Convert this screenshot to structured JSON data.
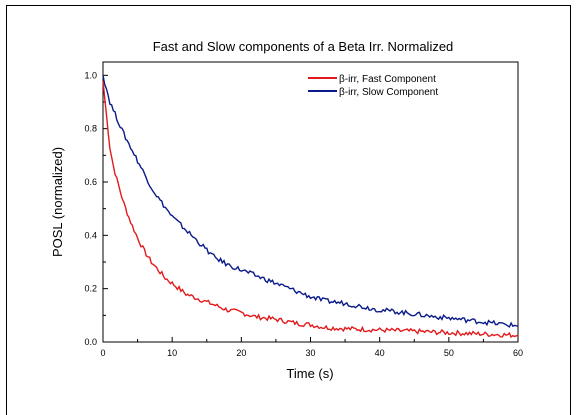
{
  "chart_data": {
    "type": "line",
    "title": "Fast and Slow components of a Beta Irr. Normalized",
    "xlabel": "Time (s)",
    "ylabel": "POSL (normalized)",
    "xlim": [
      0,
      60
    ],
    "ylim": [
      0,
      1.05
    ],
    "xticks": [
      0,
      10,
      20,
      30,
      40,
      50,
      60
    ],
    "yticks": [
      0.0,
      0.2,
      0.4,
      0.6,
      0.8,
      1.0
    ],
    "xtick_labels": [
      "0",
      "10",
      "20",
      "30",
      "40",
      "50",
      "60"
    ],
    "ytick_labels": [
      "0.0",
      "0.2",
      "0.4",
      "0.6",
      "0.8",
      "1.0"
    ],
    "grid": false,
    "legend": "top-right",
    "series": [
      {
        "name": "β-irr, Fast Component",
        "color": "#e31a1c",
        "x": [
          0,
          0.5,
          1,
          1.5,
          2,
          3,
          4,
          5,
          6,
          7,
          8,
          9,
          10,
          12,
          14,
          16,
          18,
          20,
          22,
          25,
          28,
          30,
          32,
          35,
          40,
          45,
          50,
          55,
          60
        ],
        "y": [
          0.98,
          0.85,
          0.73,
          0.66,
          0.61,
          0.52,
          0.45,
          0.39,
          0.34,
          0.3,
          0.27,
          0.24,
          0.22,
          0.18,
          0.16,
          0.14,
          0.12,
          0.11,
          0.095,
          0.085,
          0.07,
          0.065,
          0.055,
          0.05,
          0.045,
          0.04,
          0.035,
          0.03,
          0.025
        ]
      },
      {
        "name": "β-irr, Slow Component",
        "color": "#0a1a8a",
        "x": [
          0,
          0.5,
          1,
          2,
          3,
          4,
          5,
          6,
          7,
          8,
          10,
          12,
          14,
          16,
          18,
          20,
          22,
          25,
          28,
          30,
          32,
          35,
          38,
          40,
          42,
          45,
          48,
          50,
          55,
          60
        ],
        "y": [
          1.0,
          0.95,
          0.9,
          0.84,
          0.78,
          0.73,
          0.68,
          0.63,
          0.58,
          0.54,
          0.47,
          0.42,
          0.37,
          0.32,
          0.29,
          0.27,
          0.25,
          0.22,
          0.19,
          0.17,
          0.155,
          0.145,
          0.13,
          0.12,
          0.115,
          0.105,
          0.095,
          0.09,
          0.075,
          0.06
        ]
      }
    ]
  }
}
